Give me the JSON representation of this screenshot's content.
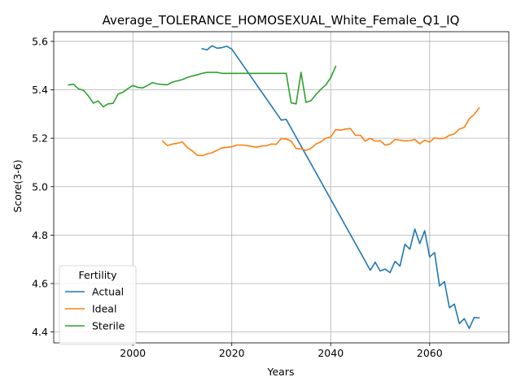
{
  "chart_data": {
    "type": "line",
    "title": "Average_TOLERANCE_HOMOSEXUAL_White_Female_Q1_IQ",
    "xlabel": "Years",
    "ylabel": "Score(3-6)",
    "xlim": [
      1984,
      2076
    ],
    "ylim": [
      4.355,
      5.64
    ],
    "xticks": [
      2000,
      2020,
      2040,
      2060
    ],
    "yticks": [
      4.4,
      4.6,
      4.8,
      5.0,
      5.2,
      5.4,
      5.6
    ],
    "ytick_labels": [
      "4.4",
      "4.6",
      "4.8",
      "5.0",
      "5.2",
      "5.4",
      "5.6"
    ],
    "grid": true,
    "legend": {
      "title": "Fertility",
      "placement": "lower-left"
    },
    "series": [
      {
        "name": "Actual",
        "color": "#1f77b4",
        "points": [
          [
            2014,
            5.57
          ],
          [
            2015,
            5.565
          ],
          [
            2016,
            5.582
          ],
          [
            2017,
            5.572
          ],
          [
            2018,
            5.574
          ],
          [
            2019,
            5.58
          ],
          [
            2020,
            5.568
          ],
          [
            2030,
            5.275
          ],
          [
            2031,
            5.278
          ],
          [
            2048,
            4.655
          ],
          [
            2049,
            4.688
          ],
          [
            2050,
            4.652
          ],
          [
            2051,
            4.66
          ],
          [
            2052,
            4.645
          ],
          [
            2053,
            4.692
          ],
          [
            2054,
            4.672
          ],
          [
            2055,
            4.762
          ],
          [
            2056,
            4.742
          ],
          [
            2057,
            4.825
          ],
          [
            2058,
            4.765
          ],
          [
            2059,
            4.818
          ],
          [
            2060,
            4.71
          ],
          [
            2061,
            4.728
          ],
          [
            2062,
            4.59
          ],
          [
            2063,
            4.608
          ],
          [
            2064,
            4.5
          ],
          [
            2065,
            4.515
          ],
          [
            2066,
            4.435
          ],
          [
            2067,
            4.455
          ],
          [
            2068,
            4.415
          ],
          [
            2069,
            4.46
          ],
          [
            2070,
            4.458
          ]
        ]
      },
      {
        "name": "Ideal",
        "color": "#ff7f0e",
        "points": [
          [
            2006,
            5.188
          ],
          [
            2007,
            5.17
          ],
          [
            2008,
            5.176
          ],
          [
            2009,
            5.179
          ],
          [
            2010,
            5.185
          ],
          [
            2011,
            5.162
          ],
          [
            2012,
            5.148
          ],
          [
            2013,
            5.13
          ],
          [
            2014,
            5.128
          ],
          [
            2015,
            5.135
          ],
          [
            2016,
            5.14
          ],
          [
            2017,
            5.15
          ],
          [
            2018,
            5.16
          ],
          [
            2019,
            5.162
          ],
          [
            2020,
            5.165
          ],
          [
            2021,
            5.172
          ],
          [
            2022,
            5.172
          ],
          [
            2023,
            5.17
          ],
          [
            2024,
            5.166
          ],
          [
            2025,
            5.163
          ],
          [
            2026,
            5.168
          ],
          [
            2027,
            5.169
          ],
          [
            2028,
            5.176
          ],
          [
            2029,
            5.175
          ],
          [
            2030,
            5.199
          ],
          [
            2031,
            5.197
          ],
          [
            2032,
            5.188
          ],
          [
            2033,
            5.158
          ],
          [
            2034,
            5.156
          ],
          [
            2035,
            5.15
          ],
          [
            2036,
            5.158
          ],
          [
            2037,
            5.176
          ],
          [
            2038,
            5.185
          ],
          [
            2039,
            5.2
          ],
          [
            2040,
            5.205
          ],
          [
            2041,
            5.236
          ],
          [
            2042,
            5.233
          ],
          [
            2043,
            5.238
          ],
          [
            2044,
            5.24
          ],
          [
            2045,
            5.212
          ],
          [
            2046,
            5.212
          ],
          [
            2047,
            5.188
          ],
          [
            2048,
            5.2
          ],
          [
            2049,
            5.188
          ],
          [
            2050,
            5.19
          ],
          [
            2051,
            5.172
          ],
          [
            2052,
            5.176
          ],
          [
            2053,
            5.195
          ],
          [
            2054,
            5.192
          ],
          [
            2055,
            5.189
          ],
          [
            2056,
            5.19
          ],
          [
            2057,
            5.195
          ],
          [
            2058,
            5.177
          ],
          [
            2059,
            5.192
          ],
          [
            2060,
            5.184
          ],
          [
            2061,
            5.202
          ],
          [
            2062,
            5.198
          ],
          [
            2063,
            5.2
          ],
          [
            2064,
            5.212
          ],
          [
            2065,
            5.218
          ],
          [
            2066,
            5.238
          ],
          [
            2067,
            5.245
          ],
          [
            2068,
            5.28
          ],
          [
            2069,
            5.298
          ],
          [
            2070,
            5.325
          ]
        ]
      },
      {
        "name": "Sterile",
        "color": "#2ca02c",
        "points": [
          [
            1987,
            5.42
          ],
          [
            1988,
            5.423
          ],
          [
            1989,
            5.404
          ],
          [
            1990,
            5.398
          ],
          [
            1991,
            5.375
          ],
          [
            1992,
            5.345
          ],
          [
            1993,
            5.354
          ],
          [
            1994,
            5.33
          ],
          [
            1995,
            5.342
          ],
          [
            1996,
            5.344
          ],
          [
            1997,
            5.382
          ],
          [
            1998,
            5.39
          ],
          [
            1999,
            5.405
          ],
          [
            2000,
            5.418
          ],
          [
            2001,
            5.41
          ],
          [
            2002,
            5.408
          ],
          [
            2003,
            5.418
          ],
          [
            2004,
            5.43
          ],
          [
            2005,
            5.424
          ],
          [
            2006,
            5.422
          ],
          [
            2007,
            5.421
          ],
          [
            2008,
            5.432
          ],
          [
            2009,
            5.437
          ],
          [
            2010,
            5.442
          ],
          [
            2011,
            5.451
          ],
          [
            2012,
            5.457
          ],
          [
            2013,
            5.462
          ],
          [
            2014,
            5.468
          ],
          [
            2015,
            5.472
          ],
          [
            2016,
            5.472
          ],
          [
            2017,
            5.472
          ],
          [
            2018,
            5.468
          ],
          [
            2019,
            5.468
          ],
          [
            2020,
            5.468
          ],
          [
            2031,
            5.468
          ],
          [
            2032,
            5.346
          ],
          [
            2033,
            5.342
          ],
          [
            2034,
            5.472
          ],
          [
            2035,
            5.348
          ],
          [
            2036,
            5.355
          ],
          [
            2037,
            5.38
          ],
          [
            2038,
            5.402
          ],
          [
            2039,
            5.42
          ],
          [
            2040,
            5.45
          ],
          [
            2041,
            5.497
          ]
        ]
      }
    ]
  }
}
